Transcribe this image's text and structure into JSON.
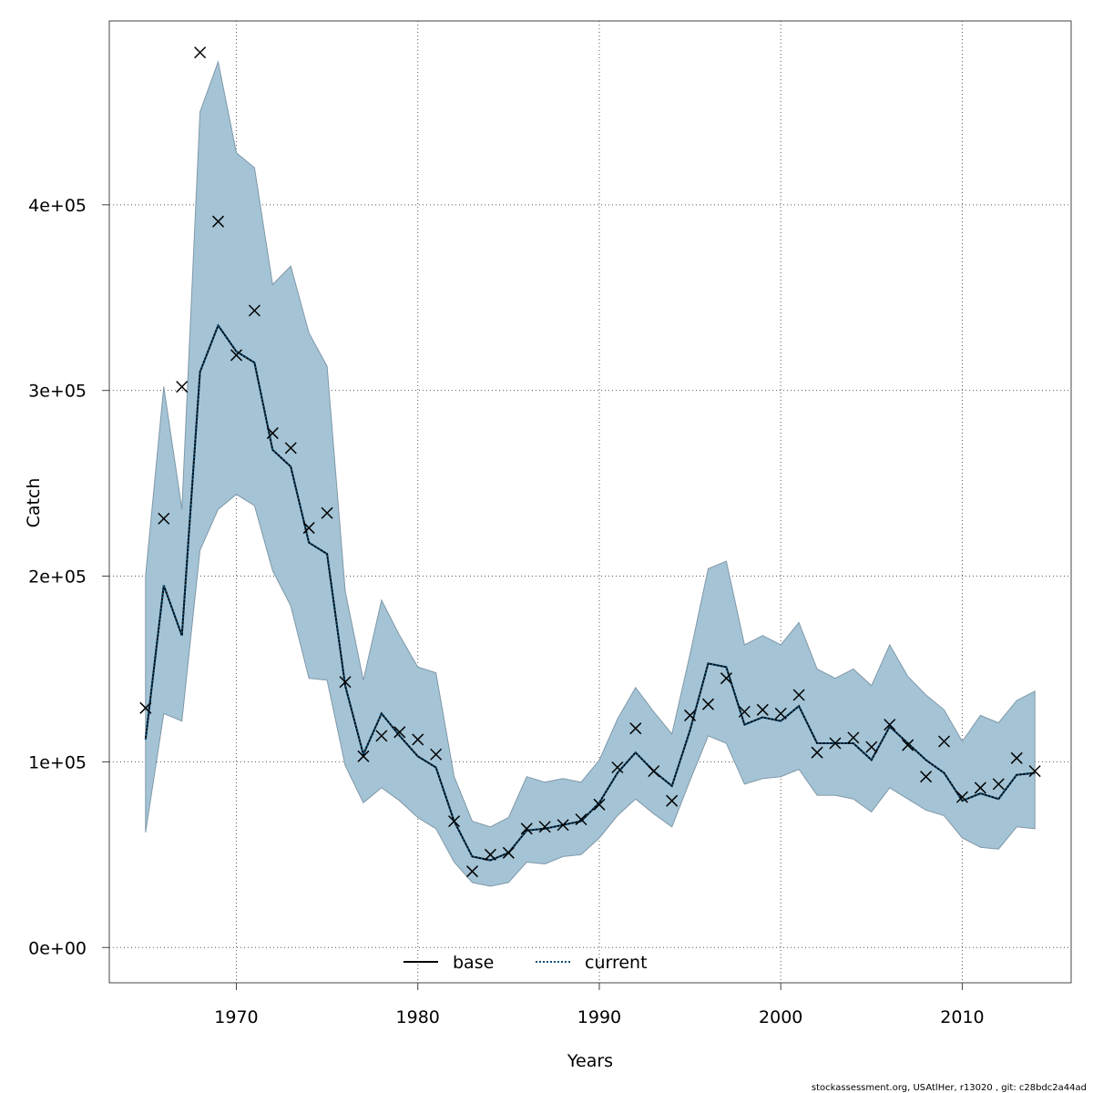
{
  "chart_data": {
    "type": "line",
    "title": "",
    "xlabel": "Years",
    "ylabel": "Catch",
    "xlim": [
      1963,
      2016
    ],
    "ylim": [
      -19000,
      499000
    ],
    "x_ticks": [
      1970,
      1980,
      1990,
      2000,
      2010
    ],
    "x_tick_labels": [
      "1970",
      "1980",
      "1990",
      "2000",
      "2010"
    ],
    "y_ticks": [
      0,
      100000,
      200000,
      300000,
      400000
    ],
    "y_tick_labels": [
      "0e+00",
      "1e+05",
      "2e+05",
      "3e+05",
      "4e+05"
    ],
    "grid": true,
    "legend_position": "bottom",
    "x": [
      1965,
      1966,
      1967,
      1968,
      1969,
      1970,
      1971,
      1972,
      1973,
      1974,
      1975,
      1976,
      1977,
      1978,
      1979,
      1980,
      1981,
      1982,
      1983,
      1984,
      1985,
      1986,
      1987,
      1988,
      1989,
      1990,
      1991,
      1992,
      1993,
      1994,
      1995,
      1996,
      1997,
      1998,
      1999,
      2000,
      2001,
      2002,
      2003,
      2004,
      2005,
      2006,
      2007,
      2008,
      2009,
      2010,
      2011,
      2012,
      2013,
      2014
    ],
    "band": {
      "upper": [
        200000,
        302000,
        236000,
        450000,
        477000,
        428000,
        420000,
        357000,
        367000,
        331000,
        313000,
        192000,
        144000,
        187000,
        168000,
        151000,
        148000,
        92000,
        68000,
        65000,
        70000,
        92000,
        89000,
        91000,
        89000,
        101000,
        123000,
        140000,
        127000,
        115000,
        158000,
        204000,
        208000,
        163000,
        168000,
        163000,
        175000,
        150000,
        145000,
        150000,
        141000,
        163000,
        146000,
        136000,
        128000,
        111000,
        125000,
        121000,
        133000,
        138000
      ],
      "lower": [
        62000,
        126000,
        122000,
        214000,
        236000,
        244000,
        238000,
        203000,
        184000,
        145000,
        144000,
        98000,
        78000,
        86000,
        79000,
        70000,
        64000,
        46000,
        35000,
        33000,
        35000,
        46000,
        45000,
        49000,
        50000,
        59000,
        71000,
        80000,
        72000,
        65000,
        90000,
        114000,
        110000,
        88000,
        91000,
        92000,
        96000,
        82000,
        82000,
        80000,
        73000,
        86000,
        80000,
        74000,
        71000,
        59000,
        54000,
        53000,
        65000,
        64000
      ]
    },
    "series": [
      {
        "name": "base",
        "values": [
          112000,
          195000,
          168000,
          310000,
          335000,
          321000,
          315000,
          268000,
          259000,
          218000,
          212000,
          141000,
          104000,
          126000,
          114000,
          103000,
          97000,
          68000,
          49000,
          47000,
          51000,
          63000,
          64000,
          66000,
          68000,
          78000,
          94000,
          105000,
          95000,
          87000,
          117000,
          153000,
          151000,
          120000,
          124000,
          122000,
          130000,
          110000,
          110000,
          110000,
          101000,
          119000,
          110000,
          101000,
          94000,
          79000,
          83000,
          80000,
          93000,
          94000
        ]
      },
      {
        "name": "current",
        "values": [
          112000,
          195000,
          168000,
          310000,
          335000,
          321000,
          315000,
          268000,
          259000,
          218000,
          212000,
          141000,
          104000,
          126000,
          114000,
          103000,
          97000,
          68000,
          49000,
          47000,
          51000,
          63000,
          64000,
          66000,
          68000,
          78000,
          94000,
          105000,
          95000,
          87000,
          117000,
          153000,
          151000,
          120000,
          124000,
          122000,
          130000,
          110000,
          110000,
          110000,
          101000,
          119000,
          110000,
          101000,
          94000,
          79000,
          83000,
          80000,
          93000,
          94000
        ]
      }
    ],
    "observed": [
      129000,
      231000,
      302000,
      482000,
      391000,
      319000,
      343000,
      277000,
      269000,
      226000,
      234000,
      143000,
      103000,
      114000,
      116000,
      112000,
      104000,
      68000,
      41000,
      50000,
      51000,
      64000,
      65000,
      66000,
      69000,
      77000,
      97000,
      118000,
      95000,
      79000,
      125000,
      131000,
      145000,
      127000,
      128000,
      126000,
      136000,
      105000,
      110000,
      113000,
      108000,
      120000,
      109000,
      92000,
      111000,
      81000,
      86000,
      88000,
      102000,
      95000
    ]
  },
  "legend": {
    "items": [
      {
        "label": "base",
        "style": "solid"
      },
      {
        "label": "current",
        "style": "dotted"
      }
    ]
  },
  "footer": {
    "text": "stockassessment.org, USAtlHer, r13020 , git: c28bdc2a44ad"
  },
  "colors": {
    "band_fill": "#a4c4d6",
    "band_stroke": "#7f98a8",
    "base_line": "#000000",
    "current_line": "#0b4f7a",
    "grid": "#555555",
    "frame": "#444444"
  }
}
